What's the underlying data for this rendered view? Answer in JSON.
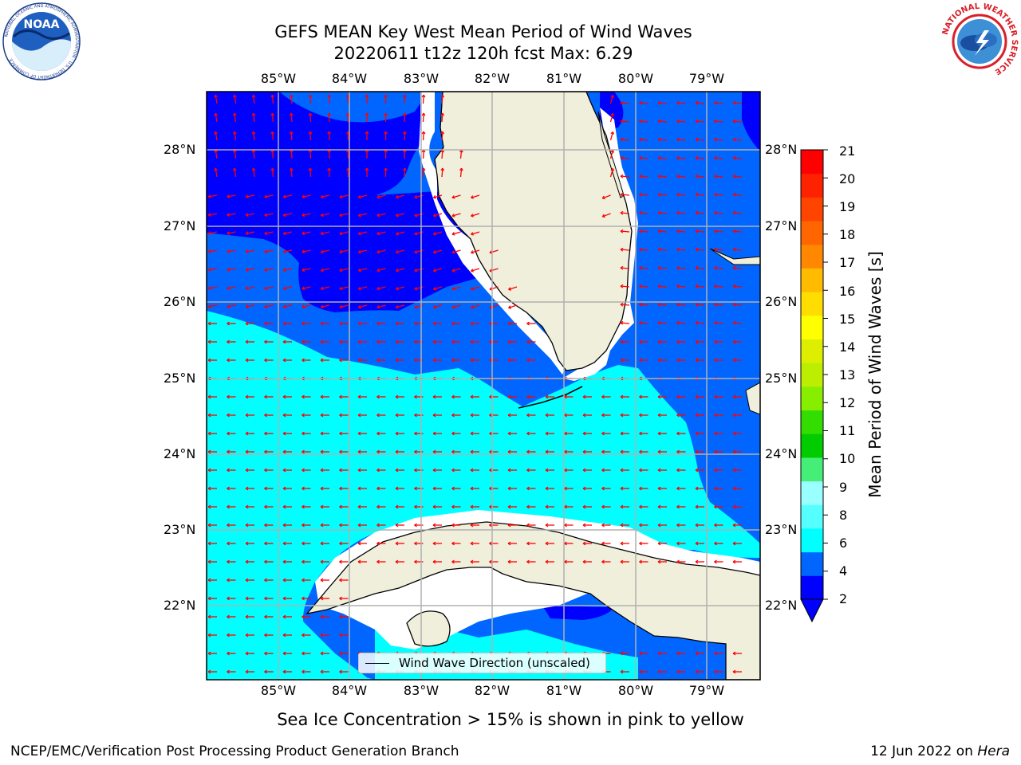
{
  "header": {
    "title_line1": "GEFS MEAN Key West Mean Period of Wind Waves",
    "title_line2": "20220611 t12z 120h fcst   Max: 6.29"
  },
  "logos": {
    "left": "NOAA",
    "left_ring_text": "NATIONAL OCEANIC AND ATMOSPHERIC ADMINISTRATION · U.S. DEPARTMENT OF COMMERCE",
    "right_ring_text": "NATIONAL WEATHER SERVICE"
  },
  "map": {
    "lon_labels": [
      "85°W",
      "84°W",
      "83°W",
      "82°W",
      "81°W",
      "80°W",
      "79°W"
    ],
    "lat_labels": [
      "28°N",
      "27°N",
      "26°N",
      "25°N",
      "24°N",
      "23°N",
      "22°N"
    ],
    "legend_text": "Wind Wave Direction (unscaled)",
    "arrow_color": "#ff0000",
    "land_color": "#efefdc",
    "sea_ice_note": "Sea Ice Concentration > 15% is shown in pink to yellow"
  },
  "colorbar": {
    "label": "Mean Period of Wind Waves [s]",
    "ticks": [
      "21",
      "20",
      "19",
      "18",
      "17",
      "16",
      "15",
      "14",
      "13",
      "12",
      "11",
      "10",
      "9",
      "8",
      "6",
      "4",
      "2"
    ],
    "colors": [
      "#0000ff",
      "#0066ff",
      "#00ffff",
      "#55ffff",
      "#99ffff",
      "#44ee77",
      "#00cc00",
      "#33dd00",
      "#88ee00",
      "#bbee00",
      "#ddee00",
      "#ffff00",
      "#ffdd00",
      "#ffbb00",
      "#ff8800",
      "#ff6600",
      "#ff4400",
      "#ff2200",
      "#ff0000"
    ]
  },
  "footer": {
    "left": "NCEP/EMC/Verification Post Processing Product Generation Branch",
    "date": "12 Jun 2022 on ",
    "machine": "Hera"
  }
}
